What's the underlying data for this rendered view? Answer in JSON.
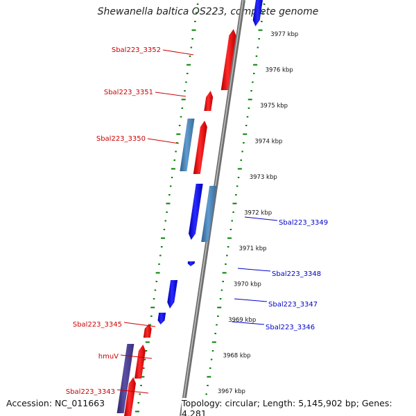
{
  "title": "Shewanella baltica OS223, complete genome",
  "footer": {
    "accession": "Accession: NC_011663",
    "topology": "Topology: circular; Length: 5,145,902 bp; Genes: 4,281"
  },
  "colors": {
    "forward_gene": "#ff0000",
    "reverse_gene": "#0000ff",
    "forward_label": "#cc0000",
    "reverse_label": "#0000cc",
    "steelblue_block": "#4682b4",
    "purple_block": "#483d8b",
    "backbone": "#808080",
    "tick": "#008000"
  },
  "ruler": {
    "unit": "kbp",
    "ticks": [
      "3977 kbp",
      "3976 kbp",
      "3975 kbp",
      "3974 kbp",
      "3973 kbp",
      "3972 kbp",
      "3971 kbp",
      "3970 kbp",
      "3969 kbp",
      "3968 kbp",
      "3967 kbp"
    ]
  },
  "gene_labels": [
    {
      "text": "Sbal223_3352",
      "strand": "forward"
    },
    {
      "text": "Sbal223_3351",
      "strand": "forward"
    },
    {
      "text": "Sbal223_3350",
      "strand": "forward"
    },
    {
      "text": "Sbal223_3349",
      "strand": "reverse"
    },
    {
      "text": "Sbal223_3348",
      "strand": "reverse"
    },
    {
      "text": "Sbal223_3347",
      "strand": "reverse"
    },
    {
      "text": "Sbal223_3346",
      "strand": "reverse"
    },
    {
      "text": "Sbal223_3345",
      "strand": "forward"
    },
    {
      "text": "hmuV",
      "strand": "forward"
    },
    {
      "text": "Sbal223_3343",
      "strand": "forward"
    }
  ]
}
